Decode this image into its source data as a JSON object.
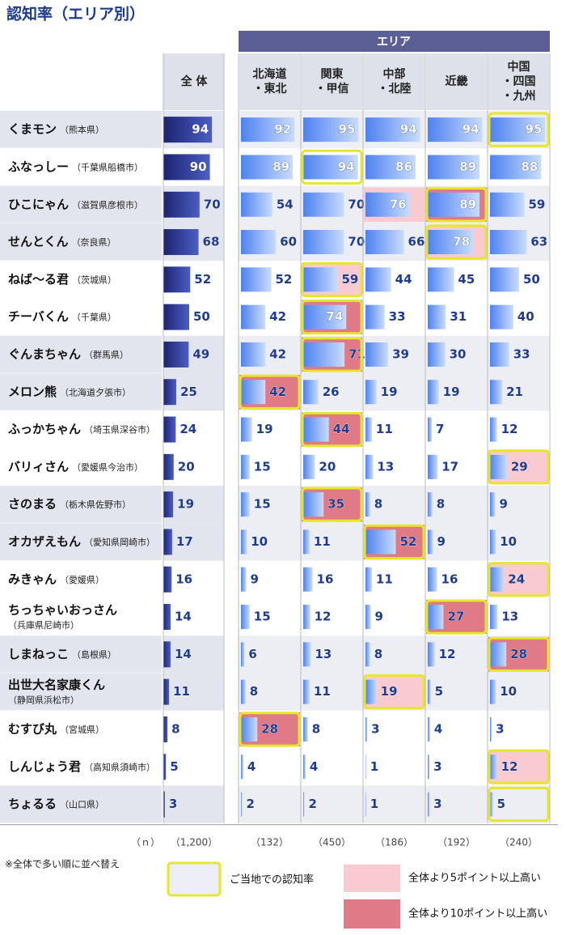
{
  "title": "認知率（エリア別）",
  "area_header": "エリア",
  "total_header": "全 体",
  "regions": [
    [
      "北海道",
      "・東北"
    ],
    [
      "関東",
      "・甲信"
    ],
    [
      "中部",
      "・北陸"
    ],
    [
      "近畿"
    ],
    [
      "中国",
      "・四国",
      "・九州"
    ]
  ],
  "n_label": "（ｎ）",
  "n_total": "（1,200）",
  "n_regions": [
    "（132）",
    "（450）",
    "（186）",
    "（192）",
    "（240）"
  ],
  "rows": [
    {
      "name": "くまモン",
      "place": "（熊本県）",
      "wrap": false,
      "total": 94,
      "regions": [
        92,
        95,
        94,
        94,
        95
      ],
      "home": 4,
      "levels": [
        0,
        0,
        0,
        0,
        0
      ]
    },
    {
      "name": "ふなっしー",
      "place": "（千葉県船橋市）",
      "wrap": false,
      "total": 90,
      "regions": [
        89,
        94,
        86,
        89,
        88
      ],
      "home": 1,
      "levels": [
        0,
        0,
        0,
        0,
        0
      ]
    },
    {
      "name": "ひこにゃん",
      "place": "（滋賀県彦根市）",
      "wrap": false,
      "total": 70,
      "regions": [
        54,
        70,
        76,
        89,
        59
      ],
      "home": 3,
      "levels": [
        0,
        0,
        5,
        10,
        0
      ]
    },
    {
      "name": "せんとくん",
      "place": "（奈良県）",
      "wrap": false,
      "total": 68,
      "regions": [
        60,
        70,
        66,
        78,
        63
      ],
      "home": 3,
      "levels": [
        0,
        0,
        0,
        5,
        0
      ]
    },
    {
      "name": "ねば～る君",
      "place": "（茨城県）",
      "wrap": false,
      "total": 52,
      "regions": [
        52,
        59,
        44,
        45,
        50
      ],
      "home": 1,
      "levels": [
        0,
        5,
        0,
        0,
        0
      ]
    },
    {
      "name": "チーバくん",
      "place": "（千葉県）",
      "wrap": false,
      "total": 50,
      "regions": [
        42,
        74,
        33,
        31,
        40
      ],
      "home": 1,
      "levels": [
        0,
        10,
        0,
        0,
        0
      ]
    },
    {
      "name": "ぐんまちゃん",
      "place": "（群馬県）",
      "wrap": false,
      "total": 49,
      "regions": [
        42,
        71,
        39,
        30,
        33
      ],
      "home": 1,
      "levels": [
        0,
        10,
        0,
        0,
        0
      ]
    },
    {
      "name": "メロン熊",
      "place": "（北海道夕張市）",
      "wrap": false,
      "total": 25,
      "regions": [
        42,
        26,
        19,
        19,
        21
      ],
      "home": 0,
      "levels": [
        10,
        0,
        0,
        0,
        0
      ]
    },
    {
      "name": "ふっかちゃん",
      "place": "（埼玉県深谷市）",
      "wrap": false,
      "total": 24,
      "regions": [
        19,
        44,
        11,
        7,
        12
      ],
      "home": 1,
      "levels": [
        0,
        10,
        0,
        0,
        0
      ]
    },
    {
      "name": "バリィさん",
      "place": "（愛媛県今治市）",
      "wrap": false,
      "total": 20,
      "regions": [
        15,
        20,
        13,
        17,
        29
      ],
      "home": 4,
      "levels": [
        0,
        0,
        0,
        0,
        5
      ]
    },
    {
      "name": "さのまる",
      "place": "（栃木県佐野市）",
      "wrap": false,
      "total": 19,
      "regions": [
        15,
        35,
        8,
        8,
        9
      ],
      "home": 1,
      "levels": [
        0,
        10,
        0,
        0,
        0
      ]
    },
    {
      "name": "オカザえもん",
      "place": "（愛知県岡崎市）",
      "wrap": false,
      "total": 17,
      "regions": [
        10,
        11,
        52,
        9,
        10
      ],
      "home": 2,
      "levels": [
        0,
        0,
        10,
        0,
        0
      ]
    },
    {
      "name": "みきゃん",
      "place": "（愛媛県）",
      "wrap": false,
      "total": 16,
      "regions": [
        9,
        16,
        11,
        16,
        24
      ],
      "home": 4,
      "levels": [
        0,
        0,
        0,
        0,
        5
      ]
    },
    {
      "name": "ちっちゃいおっさん",
      "place": "（兵庫県尼崎市）",
      "wrap": true,
      "total": 14,
      "regions": [
        15,
        12,
        9,
        27,
        13
      ],
      "home": 3,
      "levels": [
        0,
        0,
        0,
        10,
        0
      ]
    },
    {
      "name": "しまねっこ",
      "place": "（島根県）",
      "wrap": false,
      "total": 14,
      "regions": [
        6,
        13,
        8,
        12,
        28
      ],
      "home": 4,
      "levels": [
        0,
        0,
        0,
        0,
        10
      ]
    },
    {
      "name": "出世大名家康くん",
      "place": "（静岡県浜松市）",
      "wrap": true,
      "total": 11,
      "regions": [
        8,
        11,
        19,
        5,
        10
      ],
      "home": 2,
      "levels": [
        0,
        0,
        5,
        0,
        0
      ]
    },
    {
      "name": "むすび丸",
      "place": "（宮城県）",
      "wrap": false,
      "total": 8,
      "regions": [
        28,
        8,
        3,
        4,
        3
      ],
      "home": 0,
      "levels": [
        10,
        0,
        0,
        0,
        0
      ]
    },
    {
      "name": "しんじょう君",
      "place": "（高知県須崎市）",
      "wrap": false,
      "total": 5,
      "regions": [
        4,
        4,
        1,
        3,
        12
      ],
      "home": 4,
      "levels": [
        0,
        0,
        0,
        0,
        5
      ]
    },
    {
      "name": "ちょるる",
      "place": "（山口県）",
      "wrap": false,
      "total": 3,
      "regions": [
        2,
        2,
        1,
        3,
        5
      ],
      "home": 4,
      "levels": [
        0,
        0,
        0,
        0,
        0
      ]
    }
  ],
  "note": "※全体で多い順に並べ替え",
  "legend": {
    "home": "ご当地での認知率",
    "plus5": "全体より5ポイント以上高い",
    "plus10": "全体より10ポイント以上高い"
  }
}
